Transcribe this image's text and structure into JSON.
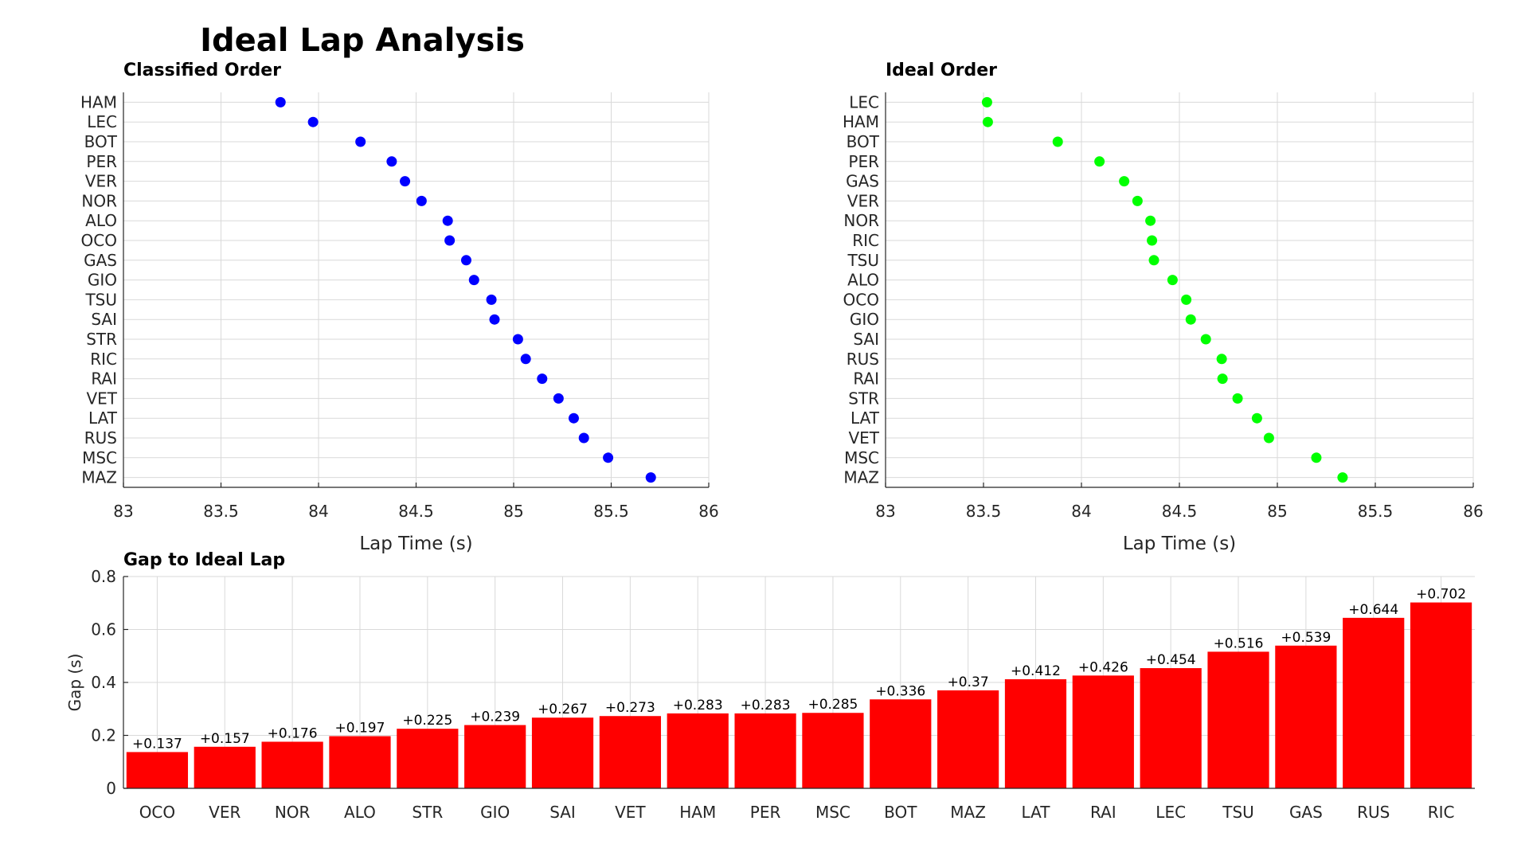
{
  "title": "Ideal Lap Analysis",
  "colors": {
    "classified_marker": "#0000ff",
    "ideal_marker": "#00ff00",
    "gap_bar": "#ff0000",
    "grid": "#d9d9d9",
    "axis": "#262626"
  },
  "chart_data": [
    {
      "type": "scatter",
      "title": "Classified Order",
      "xlabel": "Lap Time (s)",
      "ylabel": "",
      "xlim": [
        83,
        86
      ],
      "xticks": [
        "83",
        "83.5",
        "84",
        "84.5",
        "85",
        "85.5",
        "86"
      ],
      "grid": true,
      "categories": [
        "HAM",
        "LEC",
        "BOT",
        "PER",
        "VER",
        "NOR",
        "ALO",
        "OCO",
        "GAS",
        "GIO",
        "TSU",
        "SAI",
        "STR",
        "RIC",
        "RAI",
        "VET",
        "LAT",
        "RUS",
        "MSC",
        "MAZ"
      ],
      "values": [
        83.805,
        83.972,
        84.215,
        84.375,
        84.443,
        84.528,
        84.662,
        84.672,
        84.757,
        84.797,
        84.886,
        84.902,
        85.022,
        85.062,
        85.146,
        85.23,
        85.308,
        85.36,
        85.484,
        85.703
      ]
    },
    {
      "type": "scatter",
      "title": "Ideal Order",
      "xlabel": "Lap Time (s)",
      "ylabel": "",
      "xlim": [
        83,
        86
      ],
      "xticks": [
        "83",
        "83.5",
        "84",
        "84.5",
        "85",
        "85.5",
        "86"
      ],
      "grid": true,
      "categories": [
        "LEC",
        "HAM",
        "BOT",
        "PER",
        "GAS",
        "VER",
        "NOR",
        "RIC",
        "TSU",
        "ALO",
        "OCO",
        "GIO",
        "SAI",
        "RUS",
        "RAI",
        "STR",
        "LAT",
        "VET",
        "MSC",
        "MAZ"
      ],
      "values": [
        83.518,
        83.522,
        83.879,
        84.092,
        84.218,
        84.286,
        84.352,
        84.36,
        84.37,
        84.465,
        84.535,
        84.558,
        84.635,
        84.716,
        84.72,
        84.797,
        84.896,
        84.957,
        85.199,
        85.333
      ]
    },
    {
      "type": "bar",
      "title": "Gap to Ideal Lap",
      "xlabel": "",
      "ylabel": "Gap (s)",
      "ylim": [
        0,
        0.8
      ],
      "yticks": [
        "0",
        "0.2",
        "0.4",
        "0.6",
        "0.8"
      ],
      "grid": true,
      "categories": [
        "OCO",
        "VER",
        "NOR",
        "ALO",
        "STR",
        "GIO",
        "SAI",
        "VET",
        "HAM",
        "PER",
        "MSC",
        "BOT",
        "MAZ",
        "LAT",
        "RAI",
        "LEC",
        "TSU",
        "GAS",
        "RUS",
        "RIC"
      ],
      "values": [
        0.137,
        0.157,
        0.176,
        0.197,
        0.225,
        0.239,
        0.267,
        0.273,
        0.283,
        0.283,
        0.285,
        0.336,
        0.37,
        0.412,
        0.426,
        0.454,
        0.516,
        0.539,
        0.644,
        0.702
      ],
      "data_labels": [
        "+0.137",
        "+0.157",
        "+0.176",
        "+0.197",
        "+0.225",
        "+0.239",
        "+0.267",
        "+0.273",
        "+0.283",
        "+0.283",
        "+0.285",
        "+0.336",
        "+0.37",
        "+0.412",
        "+0.426",
        "+0.454",
        "+0.516",
        "+0.539",
        "+0.644",
        "+0.702"
      ]
    }
  ]
}
